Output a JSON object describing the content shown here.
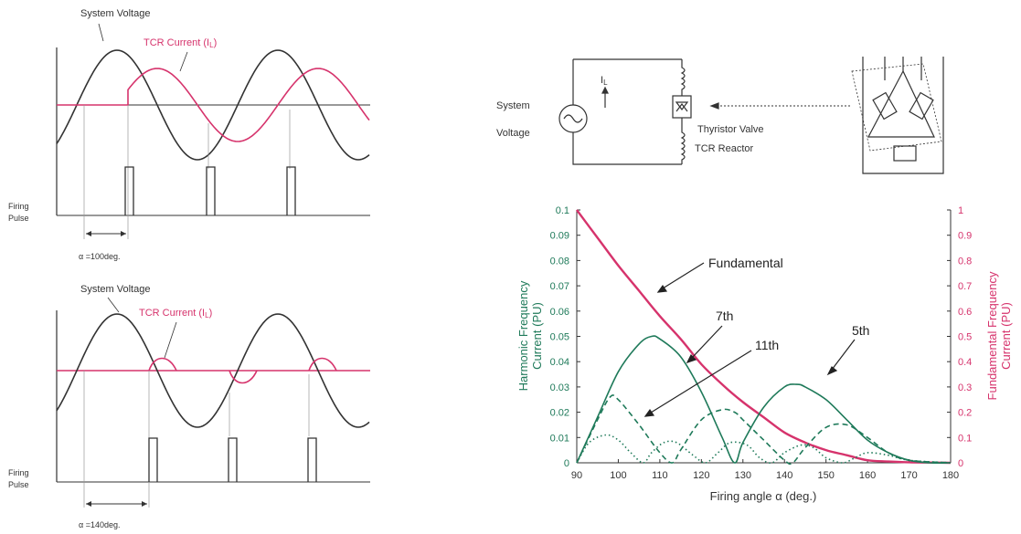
{
  "colors": {
    "voltage": "#333333",
    "current": "#d6336c",
    "harmonic": "#1f7a5a",
    "text": "#333333"
  },
  "waveform_top": {
    "voltage_label": "System Voltage",
    "current_label": "TCR Current (I",
    "current_sub": "L",
    "current_close": ")",
    "firing_label_1": "Firing",
    "firing_label_2": "Pulse",
    "alpha_label": "α =100deg.",
    "alpha_deg": 100
  },
  "waveform_bottom": {
    "voltage_label": "System Voltage",
    "current_label": "TCR Current (I",
    "current_sub": "L",
    "current_close": ")",
    "firing_label_1": "Firing",
    "firing_label_2": "Pulse",
    "alpha_label": "α =140deg.",
    "alpha_deg": 140
  },
  "circuit": {
    "current_label": "I",
    "current_sub": "L",
    "source_label_1": "System",
    "source_label_2": "Voltage",
    "valve_label": "Thyristor Valve",
    "reactor_label": "TCR Reactor"
  },
  "chart_data": {
    "type": "line",
    "xlabel": "Firing angle  α  (deg.)",
    "ylabel_left": "Harmonic Frequency Current (PU)",
    "ylabel_left_lines": [
      "Harmonic Frequency",
      "Current (PU)"
    ],
    "ylabel_right": "Fundamental Frequency Current (PU)",
    "ylabel_right_lines": [
      "Fundamental Frequency",
      "Current (PU)"
    ],
    "xlim": [
      90,
      180
    ],
    "ylim_left": [
      0,
      0.1
    ],
    "ylim_right": [
      0,
      1
    ],
    "x_ticks": [
      "90",
      "100",
      "110",
      "120",
      "130",
      "140",
      "150",
      "160",
      "170",
      "180"
    ],
    "y_ticks_left": [
      "0",
      "0.01",
      "0.02",
      "0.03",
      "0.04",
      "0.05",
      "0.06",
      "0.07",
      "0.08",
      "0.09",
      "0.1"
    ],
    "y_ticks_right": [
      "0",
      "0.1",
      "0.2",
      "0.3",
      "0.4",
      "0.5",
      "0.6",
      "0.7",
      "0.8",
      "0.9",
      "1"
    ],
    "annotations": [
      "Fundamental",
      "7th",
      "11th",
      "5th"
    ],
    "series": [
      {
        "name": "Fundamental",
        "axis": "right",
        "style": "solid",
        "x": [
          90,
          95,
          100,
          105,
          110,
          115,
          120,
          125,
          130,
          135,
          140,
          145,
          150,
          155,
          160,
          165,
          170,
          175,
          180
        ],
        "values": [
          1.0,
          0.89,
          0.78,
          0.68,
          0.58,
          0.49,
          0.39,
          0.31,
          0.24,
          0.18,
          0.12,
          0.08,
          0.05,
          0.03,
          0.01,
          0.005,
          0.002,
          0.001,
          0
        ]
      },
      {
        "name": "5th",
        "axis": "left",
        "style": "solid",
        "x": [
          90,
          95,
          100,
          105,
          108,
          110,
          115,
          120,
          125,
          128,
          130,
          135,
          140,
          143,
          145,
          150,
          155,
          160,
          165,
          170,
          175,
          180
        ],
        "values": [
          0,
          0.018,
          0.036,
          0.047,
          0.05,
          0.049,
          0.042,
          0.028,
          0.01,
          0.0,
          0.008,
          0.022,
          0.03,
          0.031,
          0.03,
          0.025,
          0.017,
          0.009,
          0.004,
          0.001,
          0,
          0
        ]
      },
      {
        "name": "7th",
        "axis": "left",
        "style": "dashed",
        "x": [
          90,
          95,
          98,
          100,
          105,
          110,
          113,
          115,
          120,
          125,
          128,
          130,
          135,
          140,
          142,
          145,
          150,
          155,
          160,
          165,
          170,
          180
        ],
        "values": [
          0,
          0.017,
          0.026,
          0.025,
          0.015,
          0.004,
          0,
          0.005,
          0.017,
          0.021,
          0.02,
          0.017,
          0.009,
          0.001,
          0,
          0.006,
          0.014,
          0.015,
          0.01,
          0.004,
          0.001,
          0
        ]
      },
      {
        "name": "11th",
        "axis": "left",
        "style": "dotted",
        "x": [
          90,
          93,
          97,
          100,
          103,
          106,
          108,
          111,
          114,
          118,
          121,
          124,
          127,
          131,
          134,
          137,
          140,
          144,
          147,
          150,
          154,
          157,
          160,
          165,
          170,
          180
        ],
        "values": [
          0,
          0.008,
          0.011,
          0.009,
          0.004,
          0,
          0.004,
          0.008,
          0.008,
          0.003,
          0,
          0.004,
          0.008,
          0.007,
          0.002,
          0,
          0.004,
          0.007,
          0.006,
          0.002,
          0,
          0.002,
          0.004,
          0.003,
          0.001,
          0
        ]
      }
    ]
  }
}
